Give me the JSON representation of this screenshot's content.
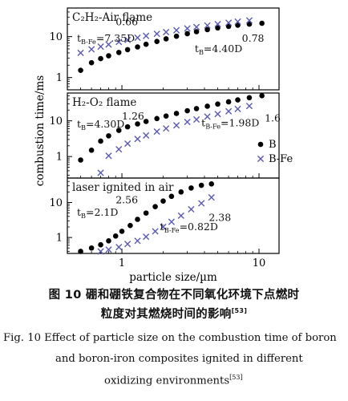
{
  "chart_data": {
    "type": "scatter",
    "x_scale": "log",
    "xlim": [
      0.4,
      14
    ],
    "xticks": [
      1,
      10
    ],
    "xtick_labels": [
      "1",
      "10"
    ],
    "xlabel": "particle size/µm",
    "ylabel": "combustion time/ms",
    "legend": {
      "placement": "middle-right",
      "entries": [
        {
          "name": "B",
          "marker": "filled-circle",
          "color": "#000000"
        },
        {
          "name": "B-Fe",
          "marker": "x",
          "color": "#5a5ab0"
        }
      ]
    },
    "panels": [
      {
        "title": "C₂H₂-Air flame",
        "y_scale": "log",
        "ylim": [
          0.5,
          50
        ],
        "yticks": [
          1,
          10
        ],
        "ytick_labels": [
          "1",
          "10"
        ],
        "annotations": [
          {
            "text": "0.66",
            "x": 0.9,
            "y": 19
          },
          {
            "text": "t_B-Fe=7.35D",
            "x": 0.47,
            "y": 7.5
          },
          {
            "text": "t_B=4.40D",
            "x": 3.4,
            "y": 4.2
          },
          {
            "text": "0.78",
            "x": 7.5,
            "y": 7.5
          }
        ],
        "series": [
          {
            "name": "B",
            "x": [
              0.5,
              0.6,
              0.7,
              0.8,
              0.95,
              1.1,
              1.3,
              1.5,
              1.8,
              2.1,
              2.5,
              3.0,
              3.5,
              4.2,
              5.0,
              6.0,
              7.0,
              8.5,
              10.5
            ],
            "y": [
              1.5,
              2.3,
              2.9,
              3.4,
              4.1,
              4.8,
              5.6,
              6.5,
              7.6,
              8.8,
              10.2,
              11.8,
              13.2,
              14.8,
              16.3,
              17.8,
              19.0,
              20.2,
              21.2
            ]
          },
          {
            "name": "B-Fe",
            "x": [
              0.5,
              0.6,
              0.7,
              0.8,
              0.95,
              1.1,
              1.3,
              1.5,
              1.8,
              2.1,
              2.5,
              3.0,
              3.5,
              4.2,
              5.0,
              6.0,
              7.0,
              8.5
            ],
            "y": [
              4.0,
              4.9,
              5.7,
              6.4,
              7.4,
              8.3,
              9.4,
              10.4,
              11.7,
              12.9,
              14.3,
              15.8,
              17.1,
              18.7,
              20.2,
              21.8,
              23.2,
              24.8
            ]
          }
        ]
      },
      {
        "title": "H₂-O₂ flame",
        "y_scale": "log",
        "ylim": [
          0.25,
          60
        ],
        "yticks": [
          1,
          10
        ],
        "ytick_labels": [
          "1",
          "10"
        ],
        "annotations": [
          {
            "text": "1.26",
            "x": 1.0,
            "y": 11
          },
          {
            "text": "t_B=4.30D",
            "x": 0.47,
            "y": 6.5
          },
          {
            "text": "t_B-Fe=1.98D",
            "x": 3.8,
            "y": 7.0
          },
          {
            "text": "1.6",
            "x": 11.0,
            "y": 9.5
          }
        ],
        "series": [
          {
            "name": "B",
            "x": [
              0.5,
              0.6,
              0.7,
              0.8,
              0.95,
              1.1,
              1.3,
              1.5,
              1.8,
              2.1,
              2.5,
              3.0,
              3.5,
              4.2,
              5.0,
              6.0,
              7.0,
              8.5,
              10.5
            ],
            "y": [
              0.8,
              1.5,
              2.7,
              3.8,
              5.4,
              6.8,
              8.2,
              9.6,
              11.6,
              13.6,
              16.1,
              19.2,
              22.0,
              25.6,
              29.5,
              34.0,
              38.5,
              44.5,
              50.5
            ]
          },
          {
            "name": "B-Fe",
            "x": [
              0.7,
              0.8,
              0.95,
              1.1,
              1.3,
              1.5,
              1.8,
              2.1,
              2.5,
              3.0,
              3.5,
              4.2,
              5.0,
              6.0,
              7.0,
              8.5
            ],
            "y": [
              0.35,
              1.05,
              1.6,
              2.3,
              3.1,
              3.9,
              5.0,
              6.1,
              7.5,
              9.3,
              10.9,
              13.1,
              15.5,
              18.5,
              21.5,
              26.0
            ]
          }
        ]
      },
      {
        "title": "laser ignited in air",
        "y_scale": "log",
        "ylim": [
          0.35,
          50
        ],
        "yticks": [
          1,
          10
        ],
        "ytick_labels": [
          "1",
          "10"
        ],
        "annotations": [
          {
            "text": "2.56",
            "x": 0.9,
            "y": 9.5
          },
          {
            "text": "t_B=2.1D",
            "x": 0.47,
            "y": 4.2
          },
          {
            "text": "t_B-Fe=0.82D",
            "x": 1.9,
            "y": 1.6
          },
          {
            "text": "2.38",
            "x": 4.3,
            "y": 3.0
          }
        ],
        "series": [
          {
            "name": "B",
            "x": [
              0.5,
              0.6,
              0.7,
              0.8,
              0.9,
              1.0,
              1.15,
              1.3,
              1.5,
              1.75,
              2.0,
              2.3,
              2.7,
              3.2,
              3.8,
              4.5
            ],
            "y": [
              0.4,
              0.5,
              0.62,
              0.8,
              1.1,
              1.5,
              2.2,
              3.3,
              5.0,
              7.6,
              11.0,
              15.0,
              20.0,
              26.0,
              31.0,
              34.0
            ]
          },
          {
            "name": "B-Fe",
            "x": [
              0.7,
              0.8,
              0.95,
              1.1,
              1.3,
              1.5,
              1.75,
              2.0,
              2.3,
              2.7,
              3.2,
              3.8,
              4.5
            ],
            "y": [
              0.4,
              0.45,
              0.53,
              0.65,
              0.8,
              1.05,
              1.5,
              2.0,
              2.8,
              4.2,
              6.4,
              9.5,
              14.0
            ]
          }
        ]
      }
    ]
  },
  "caption": {
    "zh_line1": "图 10    硼和硼铁复合物在不同氧化环境下点燃时",
    "zh_line2": "粒度对其燃烧时间的影响",
    "zh_ref": "[53]",
    "en_line1": "Fig. 10    Effect of particle size on the combustion time of boron",
    "en_line2": "and boron-iron composites ignited in different",
    "en_line3": "oxidizing environments",
    "en_ref": "[53]"
  }
}
